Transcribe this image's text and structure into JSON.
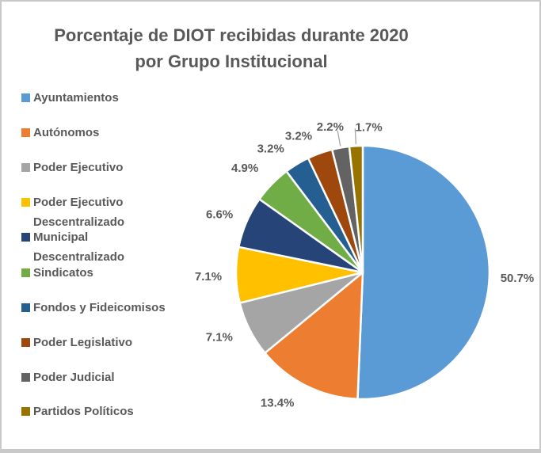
{
  "window": {
    "background_color": "#FFFFFF",
    "frame_border_color": "#C9C9C9",
    "text_color": "#595959"
  },
  "chart_data": {
    "type": "pie",
    "title": "Porcentaje de DIOT recibidas durante 2020 por Grupo Institucional",
    "title_lines": [
      "Porcentaje de DIOT recibidas durante 2020",
      "por Grupo Institucional"
    ],
    "legend_position": "left",
    "start_angle_deg": 0,
    "direction": "clockwise",
    "labels_format": "percent_outside",
    "slice_border_color": "#FFFFFF",
    "leader_line_color": "#A6A6A6",
    "series": [
      {
        "label": "Ayuntamientos",
        "value": 50.7,
        "display": "50.7%",
        "color": "#5B9BD5"
      },
      {
        "label": "Autónomos",
        "value": 13.4,
        "display": "13.4%",
        "color": "#ED7D31"
      },
      {
        "label": "Poder Ejecutivo",
        "value": 7.1,
        "display": "7.1%",
        "color": "#A5A5A5"
      },
      {
        "label": "Poder Ejecutivo\nDescentralizado",
        "value": 7.1,
        "display": "7.1%",
        "color": "#FFC000"
      },
      {
        "label": "Municipal\nDescentralizado",
        "value": 6.6,
        "display": "6.6%",
        "color": "#264478"
      },
      {
        "label": "Sindicatos",
        "value": 4.9,
        "display": "4.9%",
        "color": "#70AD47"
      },
      {
        "label": "Fondos y Fideicomisos",
        "value": 3.2,
        "display": "3.2%",
        "color": "#255E91"
      },
      {
        "label": "Poder Legislativo",
        "value": 3.2,
        "display": "3.2%",
        "color": "#9E480E"
      },
      {
        "label": "Poder Judicial",
        "value": 2.2,
        "display": "2.2%",
        "color": "#636363"
      },
      {
        "label": "Partidos Políticos",
        "value": 1.7,
        "display": "1.7%",
        "color": "#997300"
      }
    ]
  }
}
